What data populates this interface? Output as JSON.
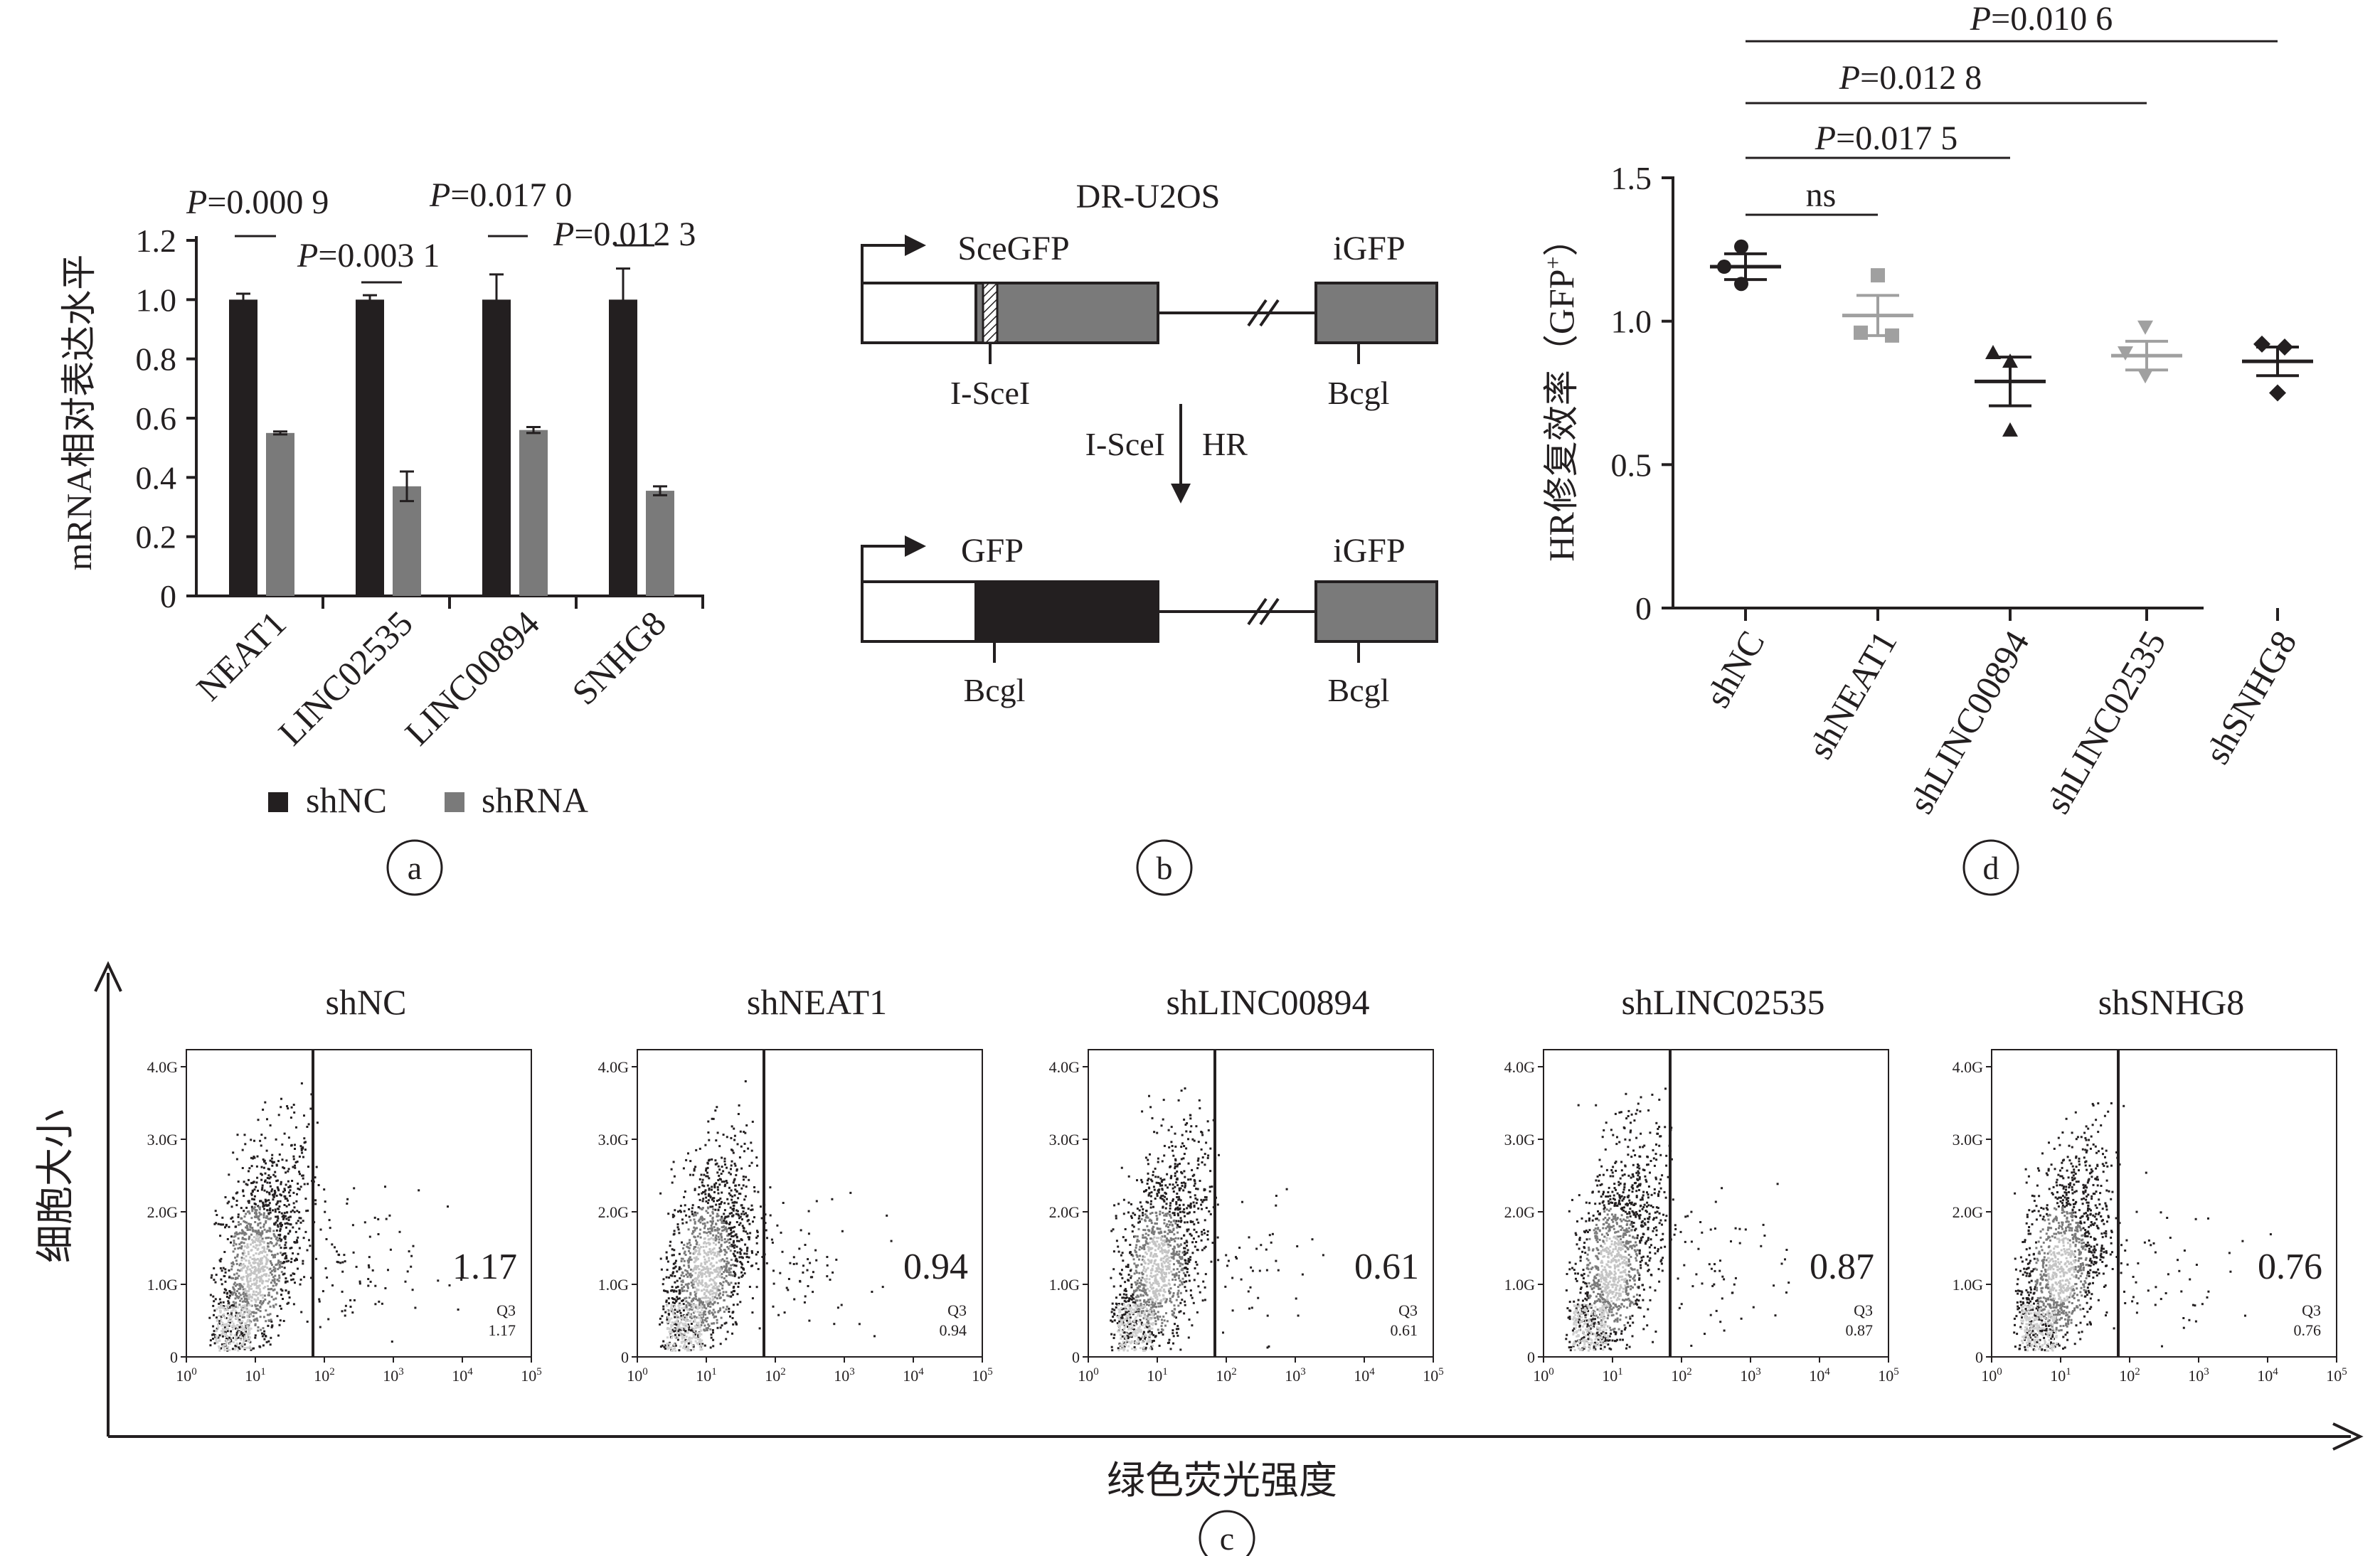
{
  "panel_labels": {
    "a": "a",
    "b": "b",
    "c": "c",
    "d": "d"
  },
  "colors": {
    "dark": "#231f20",
    "mid": "#7a7a7a",
    "light": "#a0a0a0",
    "lighter": "#c4c4c4"
  },
  "chart_data": [
    {
      "panel": "a",
      "type": "bar",
      "ylabel": "mRNA相对表达水平",
      "ylim": [
        0,
        1.2
      ],
      "yticks": [
        "0",
        "0.2",
        "0.4",
        "0.6",
        "0.8",
        "1.0",
        "1.2"
      ],
      "categories": [
        "NEAT1",
        "LINC02535",
        "LINC00894",
        "SNHG8"
      ],
      "series": [
        {
          "name": "shNC",
          "values": [
            1.0,
            1.0,
            1.0,
            1.0
          ],
          "errors": [
            0.02,
            0.015,
            0.085,
            0.105
          ]
        },
        {
          "name": "shRNA",
          "values": [
            0.55,
            0.37,
            0.56,
            0.355
          ],
          "errors": [
            0.005,
            0.05,
            0.01,
            0.015
          ]
        }
      ],
      "p_values": [
        {
          "prefix": "P",
          "value": "=0.000 9"
        },
        {
          "prefix": "P",
          "value": "=0.003 1"
        },
        {
          "prefix": "P",
          "value": "=0.017 0"
        },
        {
          "prefix": "P",
          "value": "=0.012 3"
        }
      ],
      "legend": [
        "shNC",
        "shRNA"
      ]
    },
    {
      "panel": "d",
      "type": "scatter",
      "ylabel_main": "HR修复效率（GFP",
      "ylabel_sup": "+",
      "ylabel_close": "）",
      "ylim": [
        0,
        1.5
      ],
      "yticks": [
        "0",
        "0.5",
        "1.0",
        "1.5"
      ],
      "categories": [
        "shNC",
        "shNEAT1",
        "shLINC00894",
        "shLINC02535",
        "shSNHG8"
      ],
      "points": [
        [
          1.26,
          1.19,
          1.13
        ],
        [
          1.16,
          0.96,
          0.95
        ],
        [
          0.89,
          0.86,
          0.62
        ],
        [
          0.98,
          0.89,
          0.81
        ],
        [
          0.92,
          0.91,
          0.75
        ]
      ],
      "means": [
        1.19,
        1.02,
        0.79,
        0.88,
        0.86
      ],
      "sem": [
        0.045,
        0.07,
        0.085,
        0.05,
        0.05
      ],
      "comparisons": [
        {
          "label": "ns"
        },
        {
          "prefix": "P",
          "value": "=0.017 5"
        },
        {
          "prefix": "P",
          "value": "=0.012 8"
        },
        {
          "prefix": "P",
          "value": "=0.010 6"
        }
      ]
    },
    {
      "panel": "c",
      "type": "scatter",
      "ylabel": "细胞大小",
      "xlabel": "绿色荧光强度",
      "y_ticks": [
        "0",
        "1.0G",
        "2.0G",
        "3.0G",
        "4.0G"
      ],
      "x_tick_exponents": [
        "0",
        "1",
        "2",
        "3",
        "4",
        "5"
      ],
      "x_tick_base": "10",
      "gate_label": "Q3",
      "plots": [
        {
          "title": "shNC",
          "value": "1.17"
        },
        {
          "title": "shNEAT1",
          "value": "0.94"
        },
        {
          "title": "shLINC00894",
          "value": "0.61"
        },
        {
          "title": "shLINC02535",
          "value": "0.87"
        },
        {
          "title": "shSNHG8",
          "value": "0.76"
        }
      ]
    }
  ],
  "diagram_b": {
    "title": "DR-U2OS",
    "top": {
      "left_label": "SceGFP",
      "right_label": "iGFP",
      "cut_label": "I-SceI",
      "right_site": "Bcgl"
    },
    "arrow": {
      "left": "I-SceI",
      "right": "HR"
    },
    "bottom": {
      "left_label": "GFP",
      "right_label": "iGFP",
      "left_site": "Bcgl",
      "right_site": "Bcgl"
    }
  }
}
